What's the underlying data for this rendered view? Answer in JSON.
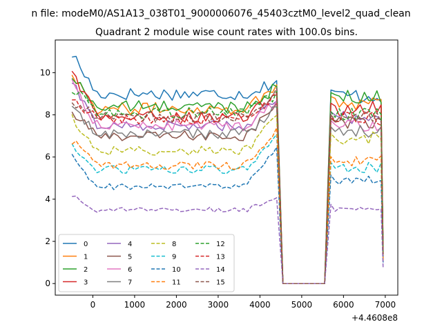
{
  "chart_data": {
    "type": "line",
    "suptitle": "n file: modeM0/AS1A13_038T01_9000006076_45403cztM0_level2_quad_clean",
    "title": "Quadrant 2 module wise count rates with 100.0s bins.",
    "offset_label": "+4.4608e8",
    "xlim": [
      -900,
      7300
    ],
    "ylim": [
      -0.55,
      11.55
    ],
    "xticks": [
      0,
      1000,
      2000,
      3000,
      4000,
      5000,
      6000,
      7000
    ],
    "xtick_labels": [
      "0",
      "1000",
      "2000",
      "3000",
      "4000",
      "5000",
      "6000",
      "7000"
    ],
    "yticks": [
      0,
      2,
      4,
      6,
      8,
      10
    ],
    "ytick_labels": [
      "0",
      "2",
      "4",
      "6",
      "8",
      "10"
    ],
    "grid": false,
    "legend_position": "lower-left",
    "legend_columns": 4,
    "segments": [
      {
        "x_start": -500,
        "x_end": 4400,
        "step": 100
      },
      {
        "x_start": 5700,
        "x_end": 6900,
        "step": 100
      }
    ],
    "gap": {
      "x_drop_end": 4550,
      "x_rise_start": 5550,
      "x_end_point": 6950
    },
    "series": [
      {
        "name": "0",
        "color": "#1f77b4",
        "style": "solid",
        "level": 9.0,
        "start": 10.9,
        "edge": 9.6,
        "late_level": 8.9,
        "end_value": 1.5
      },
      {
        "name": "1",
        "color": "#ff7f0e",
        "style": "solid",
        "level": 8.3,
        "start": 10.0,
        "edge": 9.4,
        "late_level": 8.6,
        "end_value": 1.5
      },
      {
        "name": "2",
        "color": "#2ca02c",
        "style": "solid",
        "level": 8.4,
        "start": 9.8,
        "edge": 9.3,
        "late_level": 8.8,
        "end_value": 1.4
      },
      {
        "name": "3",
        "color": "#d62728",
        "style": "solid",
        "level": 7.9,
        "start": 10.1,
        "edge": 8.9,
        "late_level": 8.3,
        "end_value": 1.4
      },
      {
        "name": "4",
        "color": "#9467bd",
        "style": "solid",
        "level": 7.5,
        "start": 9.5,
        "edge": 8.6,
        "late_level": 7.9,
        "end_value": 1.3
      },
      {
        "name": "5",
        "color": "#8c564b",
        "style": "solid",
        "level": 7.0,
        "start": 8.1,
        "edge": 8.5,
        "late_level": 7.6,
        "end_value": 1.3
      },
      {
        "name": "6",
        "color": "#e377c2",
        "style": "solid",
        "level": 7.5,
        "start": 9.6,
        "edge": 8.6,
        "late_level": 7.5,
        "end_value": 1.3
      },
      {
        "name": "7",
        "color": "#7f7f7f",
        "style": "solid",
        "level": 7.1,
        "start": 8.3,
        "edge": 8.3,
        "late_level": 7.2,
        "end_value": 1.2
      },
      {
        "name": "8",
        "color": "#bcbd22",
        "style": "dashed",
        "level": 6.3,
        "start": 7.9,
        "edge": 7.9,
        "late_level": 6.9,
        "end_value": 1.2
      },
      {
        "name": "9",
        "color": "#17becf",
        "style": "dashed",
        "level": 5.4,
        "start": 6.5,
        "edge": 7.0,
        "late_level": 5.5,
        "end_value": 1.1
      },
      {
        "name": "10",
        "color": "#1f77b4",
        "style": "dashed",
        "level": 4.6,
        "start": 6.0,
        "edge": 6.4,
        "late_level": 4.9,
        "end_value": 1.0
      },
      {
        "name": "11",
        "color": "#ff7f0e",
        "style": "dashed",
        "level": 5.6,
        "start": 6.8,
        "edge": 7.3,
        "late_level": 5.8,
        "end_value": 1.1
      },
      {
        "name": "12",
        "color": "#2ca02c",
        "style": "dashed",
        "level": 8.1,
        "start": 9.3,
        "edge": 9.0,
        "late_level": 8.0,
        "end_value": 1.4
      },
      {
        "name": "13",
        "color": "#d62728",
        "style": "dashed",
        "level": 7.8,
        "start": 8.9,
        "edge": 8.9,
        "late_level": 7.8,
        "end_value": 1.4
      },
      {
        "name": "14",
        "color": "#9467bd",
        "style": "dashed",
        "level": 3.5,
        "start": 4.2,
        "edge": 4.0,
        "late_level": 3.5,
        "end_value": 0.7
      },
      {
        "name": "15",
        "color": "#8c564b",
        "style": "dashed",
        "level": 7.9,
        "start": 8.7,
        "edge": 9.1,
        "late_level": 7.9,
        "end_value": 1.4
      }
    ]
  }
}
